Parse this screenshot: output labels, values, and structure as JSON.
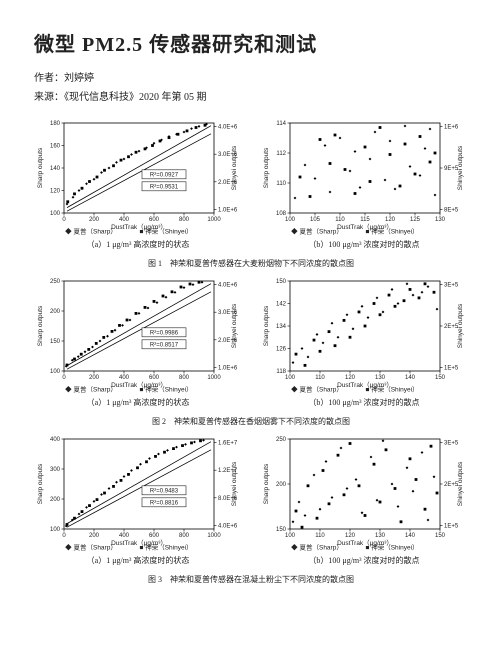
{
  "title": "微型 PM2.5 传感器研究和测试",
  "author_label": "作者：",
  "author": "刘婷婷",
  "source_label": "来源：",
  "source": "《现代信息科技》2020 年第 05 期",
  "figure_captions": {
    "fig1": "图 1　神荣和夏普传感器在大麦粉烟物下不同浓度的散点图",
    "fig2": "图 2　神荣和夏普传感器在香烟烟雾下不同浓度的散点图",
    "fig3": "图 3　神荣和夏普传感器在混凝土粉尘下不同浓度的散点图"
  },
  "panel_subcaptions": {
    "a1": "（a）1 μg/m³ 高浓度时的状态",
    "b1": "（b）100 μg/m³ 浓度对时的散点",
    "a2": "（a）1 μg/m³ 高浓度时的状态",
    "b2": "（b）100 μg/m³ 浓度对时的散点",
    "a3": "（a）1 μg/m³ 高浓度时的状态",
    "b3": "（b）100 μg/m³ 浓度对时的散点"
  },
  "common_axis": {
    "x_label": "DustTrak（μg/m³）",
    "y_label_left": "Sharp outputs",
    "y_label_right": "Shinyei outputs",
    "legend_items": [
      "◆ 夏普（Sharp）",
      "■ 神荣（Shinyei）"
    ]
  },
  "panels": [
    {
      "id": "p1a",
      "type": "fit",
      "x_ticks": [
        0,
        200,
        400,
        600,
        800,
        1000
      ],
      "y_left": [
        100,
        120,
        140,
        160,
        180
      ],
      "y_right": [
        "1.0E+6",
        "2.0E+6",
        "3.0E+6",
        "4.0E+6"
      ],
      "r2": [
        "R²=0.0927",
        "R²=0.9531"
      ],
      "points_d": [
        [
          20,
          108
        ],
        [
          60,
          114
        ],
        [
          100,
          120
        ],
        [
          150,
          126
        ],
        [
          200,
          130
        ],
        [
          250,
          136
        ],
        [
          300,
          140
        ],
        [
          350,
          145
        ],
        [
          400,
          148
        ],
        [
          450,
          152
        ],
        [
          500,
          155
        ],
        [
          550,
          158
        ],
        [
          600,
          162
        ],
        [
          650,
          165
        ],
        [
          700,
          168
        ],
        [
          750,
          170
        ],
        [
          800,
          172
        ],
        [
          850,
          175
        ],
        [
          900,
          177
        ],
        [
          950,
          179
        ]
      ],
      "points_s": [
        [
          25,
          110
        ],
        [
          70,
          117
        ],
        [
          120,
          122
        ],
        [
          170,
          128
        ],
        [
          220,
          132
        ],
        [
          270,
          138
        ],
        [
          330,
          142
        ],
        [
          380,
          147
        ],
        [
          430,
          150
        ],
        [
          480,
          154
        ],
        [
          540,
          157
        ],
        [
          590,
          160
        ],
        [
          640,
          164
        ],
        [
          700,
          167
        ],
        [
          760,
          170
        ],
        [
          820,
          173
        ],
        [
          880,
          176
        ],
        [
          940,
          178
        ]
      ],
      "colors": {
        "d": "#000000",
        "s": "#000000"
      }
    },
    {
      "id": "p1b",
      "type": "cloud",
      "x_ticks": [
        100,
        105,
        110,
        115,
        120,
        125,
        130
      ],
      "y_left": [
        108,
        110,
        112,
        114
      ],
      "y_right": [
        "8E+5",
        "9E+5",
        "1E+6"
      ],
      "points_d": [
        [
          101,
          109.0
        ],
        [
          103,
          111.2
        ],
        [
          105,
          110.3
        ],
        [
          107,
          112.5
        ],
        [
          108,
          109.4
        ],
        [
          110,
          113.0
        ],
        [
          112,
          110.8
        ],
        [
          113,
          112.1
        ],
        [
          114,
          109.7
        ],
        [
          116,
          111.6
        ],
        [
          117,
          113.4
        ],
        [
          119,
          110.2
        ],
        [
          120,
          112.8
        ],
        [
          121,
          109.6
        ],
        [
          123,
          113.8
        ],
        [
          124,
          111.1
        ],
        [
          126,
          110.5
        ],
        [
          127,
          112.3
        ],
        [
          128,
          113.6
        ],
        [
          129,
          109.2
        ]
      ],
      "points_s": [
        [
          102,
          110.4
        ],
        [
          104,
          109.1
        ],
        [
          106,
          112.9
        ],
        [
          108,
          111.3
        ],
        [
          109,
          113.2
        ],
        [
          111,
          110.9
        ],
        [
          113,
          109.3
        ],
        [
          115,
          112.4
        ],
        [
          116,
          110.1
        ],
        [
          118,
          113.7
        ],
        [
          120,
          111.9
        ],
        [
          122,
          109.8
        ],
        [
          123,
          112.6
        ],
        [
          125,
          110.6
        ],
        [
          126,
          113.1
        ],
        [
          128,
          111.4
        ],
        [
          129,
          112.0
        ]
      ],
      "colors": {
        "d": "#000000",
        "s": "#000000"
      }
    },
    {
      "id": "p2a",
      "type": "fit",
      "x_ticks": [
        0,
        200,
        400,
        600,
        800,
        1000
      ],
      "y_left": [
        100,
        150,
        200,
        250
      ],
      "y_right": [
        "1.0E+6",
        "2.0E+6",
        "3.0E+6",
        "4.0E+6"
      ],
      "r2": [
        "R²=0.9986",
        "R²=0.8517"
      ],
      "points_d": [
        [
          15,
          108
        ],
        [
          55,
          118
        ],
        [
          95,
          124
        ],
        [
          140,
          132
        ],
        [
          190,
          140
        ],
        [
          240,
          150
        ],
        [
          290,
          158
        ],
        [
          340,
          168
        ],
        [
          390,
          176
        ],
        [
          440,
          185
        ],
        [
          500,
          196
        ],
        [
          560,
          205
        ],
        [
          620,
          214
        ],
        [
          680,
          223
        ],
        [
          740,
          231
        ],
        [
          800,
          239
        ],
        [
          860,
          244
        ],
        [
          920,
          248
        ]
      ],
      "points_s": [
        [
          20,
          110
        ],
        [
          70,
          120
        ],
        [
          115,
          128
        ],
        [
          165,
          136
        ],
        [
          215,
          146
        ],
        [
          265,
          156
        ],
        [
          320,
          166
        ],
        [
          370,
          176
        ],
        [
          420,
          185
        ],
        [
          480,
          196
        ],
        [
          540,
          206
        ],
        [
          600,
          216
        ],
        [
          660,
          225
        ],
        [
          720,
          232
        ],
        [
          780,
          240
        ],
        [
          840,
          245
        ],
        [
          900,
          248
        ]
      ],
      "colors": {
        "d": "#000000",
        "s": "#000000"
      }
    },
    {
      "id": "p2b",
      "type": "cloud",
      "x_ticks": [
        100,
        110,
        120,
        130,
        140,
        150
      ],
      "y_left": [
        118,
        126,
        134,
        142,
        150
      ],
      "y_right": [
        "1E+5",
        "2E+5",
        "3E+5"
      ],
      "points_d": [
        [
          101,
          121
        ],
        [
          104,
          126
        ],
        [
          106,
          123
        ],
        [
          109,
          131
        ],
        [
          111,
          128
        ],
        [
          114,
          135
        ],
        [
          116,
          130
        ],
        [
          119,
          138
        ],
        [
          121,
          133
        ],
        [
          124,
          141
        ],
        [
          126,
          137
        ],
        [
          129,
          144
        ],
        [
          131,
          139
        ],
        [
          134,
          147
        ],
        [
          136,
          142
        ],
        [
          139,
          149
        ],
        [
          141,
          145
        ],
        [
          144,
          146
        ],
        [
          146,
          148
        ],
        [
          149,
          140
        ]
      ],
      "points_s": [
        [
          102,
          124
        ],
        [
          105,
          120
        ],
        [
          108,
          129
        ],
        [
          110,
          125
        ],
        [
          113,
          132
        ],
        [
          115,
          127
        ],
        [
          118,
          136
        ],
        [
          120,
          130
        ],
        [
          123,
          139
        ],
        [
          125,
          134
        ],
        [
          128,
          142
        ],
        [
          130,
          138
        ],
        [
          133,
          145
        ],
        [
          135,
          141
        ],
        [
          138,
          143
        ],
        [
          140,
          147
        ],
        [
          143,
          144
        ],
        [
          145,
          149
        ],
        [
          148,
          146
        ]
      ],
      "colors": {
        "d": "#000000",
        "s": "#000000"
      }
    },
    {
      "id": "p3a",
      "type": "fit",
      "x_ticks": [
        0,
        200,
        400,
        600,
        800,
        1000
      ],
      "y_left": [
        100,
        200,
        300,
        400
      ],
      "y_right": [
        "4.0E+6",
        "8.0E+6",
        "1.2E+7",
        "1.6E+7"
      ],
      "r2": [
        "R²=0.9483",
        "R²=0.8816"
      ],
      "points_d": [
        [
          15,
          110
        ],
        [
          55,
          130
        ],
        [
          100,
          150
        ],
        [
          150,
          172
        ],
        [
          200,
          192
        ],
        [
          250,
          215
        ],
        [
          300,
          235
        ],
        [
          350,
          256
        ],
        [
          400,
          275
        ],
        [
          450,
          295
        ],
        [
          510,
          316
        ],
        [
          570,
          335
        ],
        [
          630,
          350
        ],
        [
          690,
          362
        ],
        [
          750,
          373
        ],
        [
          810,
          382
        ],
        [
          870,
          390
        ],
        [
          930,
          396
        ]
      ],
      "points_s": [
        [
          20,
          115
        ],
        [
          70,
          136
        ],
        [
          120,
          158
        ],
        [
          170,
          178
        ],
        [
          220,
          198
        ],
        [
          270,
          220
        ],
        [
          330,
          242
        ],
        [
          380,
          262
        ],
        [
          430,
          282
        ],
        [
          490,
          304
        ],
        [
          550,
          324
        ],
        [
          610,
          342
        ],
        [
          670,
          356
        ],
        [
          730,
          368
        ],
        [
          790,
          378
        ],
        [
          850,
          387
        ],
        [
          910,
          394
        ]
      ],
      "colors": {
        "d": "#000000",
        "s": "#000000"
      }
    },
    {
      "id": "p3b",
      "type": "cloud",
      "x_ticks": [
        100,
        110,
        120,
        130,
        140,
        150
      ],
      "y_left": [
        150,
        200,
        250
      ],
      "y_right": [
        "1E+5",
        "2E+5",
        "3E+5"
      ],
      "points_d": [
        [
          101,
          158
        ],
        [
          103,
          180
        ],
        [
          105,
          165
        ],
        [
          108,
          210
        ],
        [
          110,
          172
        ],
        [
          112,
          225
        ],
        [
          114,
          185
        ],
        [
          117,
          240
        ],
        [
          119,
          195
        ],
        [
          122,
          205
        ],
        [
          124,
          168
        ],
        [
          127,
          230
        ],
        [
          129,
          182
        ],
        [
          131,
          248
        ],
        [
          134,
          200
        ],
        [
          136,
          175
        ],
        [
          139,
          218
        ],
        [
          141,
          192
        ],
        [
          144,
          235
        ],
        [
          146,
          160
        ],
        [
          148,
          208
        ]
      ],
      "points_s": [
        [
          102,
          170
        ],
        [
          104,
          152
        ],
        [
          106,
          198
        ],
        [
          109,
          162
        ],
        [
          111,
          215
        ],
        [
          113,
          178
        ],
        [
          116,
          232
        ],
        [
          118,
          188
        ],
        [
          120,
          245
        ],
        [
          123,
          198
        ],
        [
          125,
          165
        ],
        [
          128,
          222
        ],
        [
          130,
          180
        ],
        [
          132,
          238
        ],
        [
          135,
          195
        ],
        [
          137,
          158
        ],
        [
          140,
          228
        ],
        [
          142,
          205
        ],
        [
          145,
          172
        ],
        [
          147,
          242
        ],
        [
          149,
          190
        ]
      ],
      "colors": {
        "d": "#000000",
        "s": "#000000"
      }
    }
  ],
  "plot_style": {
    "axis_color": "#000000",
    "grid_color": "#d9d9d9",
    "fit_line_color": "#000000",
    "marker_size": 1.4,
    "plot_bg": "#ffffff"
  }
}
